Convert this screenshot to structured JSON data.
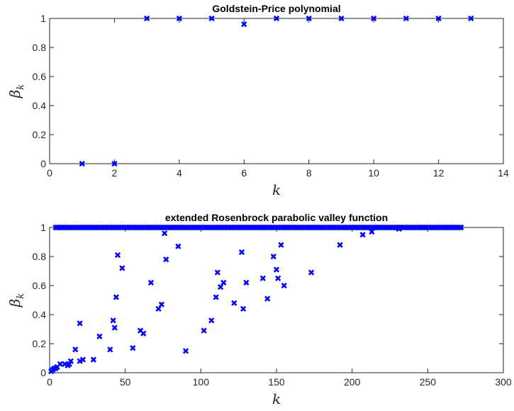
{
  "chart_data": [
    {
      "type": "scatter",
      "title": "Goldstein-Price polynomial",
      "xlabel": "k",
      "ylabel": "βk",
      "ylabel_main": "β",
      "ylabel_sub": "k",
      "xlim": [
        0,
        14
      ],
      "ylim": [
        0,
        1
      ],
      "xticks": [
        0,
        2,
        4,
        6,
        8,
        10,
        12,
        14
      ],
      "yticks": [
        0,
        0.2,
        0.4,
        0.6,
        0.8,
        1
      ],
      "xtick_labels": [
        "0",
        "2",
        "4",
        "6",
        "8",
        "10",
        "12",
        "14"
      ],
      "ytick_labels": [
        "0",
        "0.2",
        "0.4",
        "0.6",
        "0.8",
        "1"
      ],
      "marker": "x",
      "color": "#0000ff",
      "grid": false,
      "x": [
        1,
        2,
        3,
        4,
        5,
        6,
        7,
        8,
        9,
        10,
        11,
        12,
        13
      ],
      "y": [
        0,
        0,
        1,
        1,
        1,
        0.96,
        1,
        1,
        1,
        1,
        1,
        1,
        1
      ]
    },
    {
      "type": "scatter",
      "title": "extended Rosenbrock parabolic valley function",
      "xlabel": "k",
      "ylabel": "βk",
      "ylabel_main": "β",
      "ylabel_sub": "k",
      "xlim": [
        0,
        300
      ],
      "ylim": [
        0,
        1
      ],
      "xticks": [
        0,
        50,
        100,
        150,
        200,
        250,
        300
      ],
      "yticks": [
        0,
        0.2,
        0.4,
        0.6,
        0.8,
        1
      ],
      "xtick_labels": [
        "0",
        "50",
        "100",
        "150",
        "200",
        "250",
        "300"
      ],
      "ytick_labels": [
        "0",
        "0.2",
        "0.4",
        "0.6",
        "0.8",
        "1"
      ],
      "marker": "x",
      "color": "#0000ff",
      "grid": false,
      "ones_range": [
        4,
        272
      ],
      "x": [
        1,
        2,
        3,
        4,
        5,
        7,
        10,
        12,
        13,
        14,
        17,
        20,
        20,
        22,
        29,
        33,
        40,
        42,
        43,
        44,
        45,
        48,
        55,
        60,
        62,
        67,
        72,
        74,
        76,
        77,
        85,
        90,
        102,
        107,
        110,
        111,
        113,
        115,
        122,
        127,
        128,
        130,
        141,
        144,
        148,
        150,
        151,
        153,
        155,
        173,
        192,
        207,
        213,
        231
      ],
      "y": [
        0.01,
        0.02,
        0.03,
        0.03,
        0.04,
        0.06,
        0.06,
        0.05,
        0.06,
        0.08,
        0.16,
        0.08,
        0.34,
        0.09,
        0.09,
        0.25,
        0.16,
        0.36,
        0.31,
        0.52,
        0.81,
        0.72,
        0.17,
        0.29,
        0.27,
        0.62,
        0.44,
        0.47,
        0.96,
        0.78,
        0.87,
        0.15,
        0.29,
        0.36,
        0.52,
        0.69,
        0.59,
        0.62,
        0.48,
        0.83,
        0.44,
        0.62,
        0.65,
        0.51,
        0.8,
        0.71,
        0.65,
        0.88,
        0.6,
        0.69,
        0.88,
        0.95,
        0.97,
        0.99
      ]
    }
  ]
}
